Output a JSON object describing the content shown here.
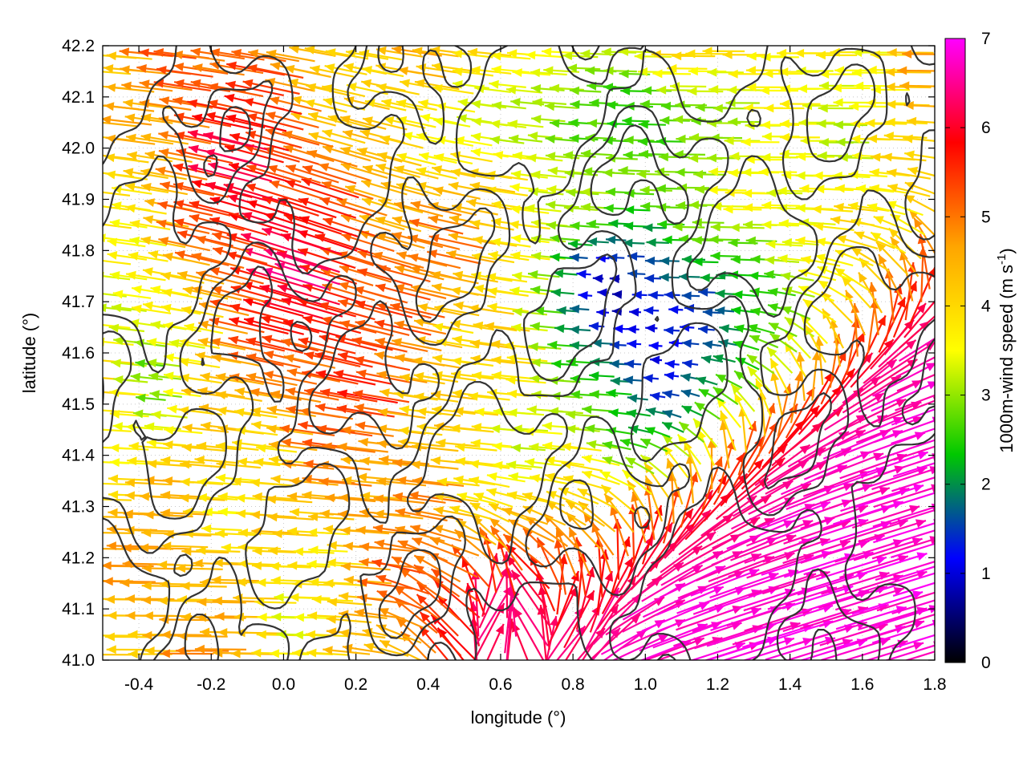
{
  "chart_data": {
    "type": "vector-field",
    "xlabel": "longitude (°)",
    "ylabel": "latitude (°)",
    "xlim": [
      -0.5,
      1.8
    ],
    "ylim": [
      41.0,
      42.2
    ],
    "x_ticks": [
      "-0.4",
      "-0.2",
      "0.0",
      "0.2",
      "0.4",
      "0.6",
      "0.8",
      "1.0",
      "1.2",
      "1.4",
      "1.6",
      "1.8"
    ],
    "y_ticks": [
      "41.0",
      "41.1",
      "41.2",
      "41.3",
      "41.4",
      "41.5",
      "41.6",
      "41.7",
      "41.8",
      "41.9",
      "42.0",
      "42.1",
      "42.2"
    ],
    "grid": "dotted",
    "colorbar": {
      "label_main": "1000m-wind speed (m s",
      "label_sup": "-1",
      "label_close": ")",
      "range": [
        0,
        7
      ],
      "ticks": [
        "0",
        "1",
        "2",
        "3",
        "4",
        "5",
        "6",
        "7"
      ],
      "colormap": [
        "#000000",
        "#0000ff",
        "#00c800",
        "#ffff00",
        "#ffa500",
        "#ff0000",
        "#ff00ff"
      ]
    },
    "contour_color": "#333333",
    "wind_regimes": [
      {
        "region": "northwest",
        "speed": 5.3,
        "direction": "from east-southeast"
      },
      {
        "region": "west",
        "speed": 4.2,
        "direction": "from east"
      },
      {
        "region": "central-north",
        "speed": 2.2,
        "direction": "from east"
      },
      {
        "region": "central-east",
        "speed": 1.3,
        "direction": "from east"
      },
      {
        "region": "southeast",
        "speed": 6.8,
        "direction": "from southwest"
      },
      {
        "region": "south-central",
        "speed": 6.5,
        "direction": "from south"
      }
    ]
  }
}
